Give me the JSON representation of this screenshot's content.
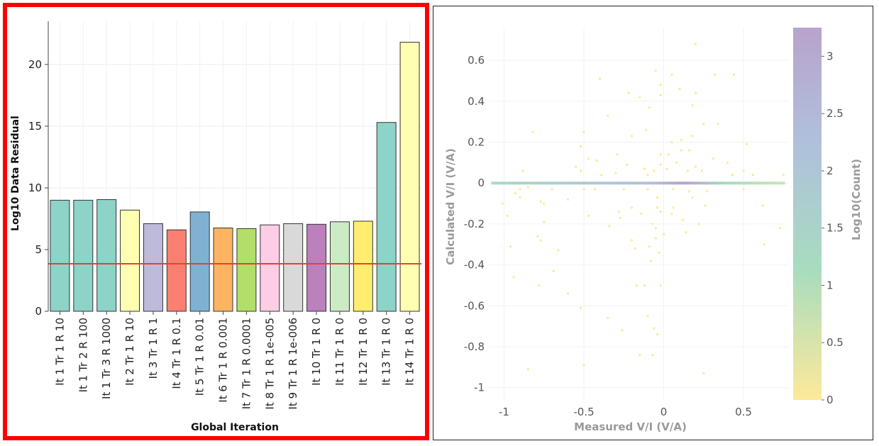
{
  "bar_chart": {
    "chart_data": {
      "type": "bar",
      "categories": [
        "It 1 Tr 1 R 10",
        "It 1 Tr 2 R 100",
        "It 1 Tr 3 R 1000",
        "It 2 Tr 1 R 10",
        "It 3 Tr 1 R 1",
        "It 4 Tr 1 R 0.1",
        "It 5 Tr 1 R 0.01",
        "It 6 Tr 1 R 0.001",
        "It 7 Tr 1 R 0.0001",
        "It 8 Tr 1 R 1e-005",
        "It 9 Tr 1 R 1e-006",
        "It 10 Tr 1 R 0",
        "It 11 Tr 1 R 0",
        "It 12 Tr 1 R 0",
        "It 13 Tr 1 R 0",
        "It 14 Tr 1 R 0"
      ],
      "values": [
        9.0,
        9.0,
        9.05,
        8.2,
        7.1,
        6.6,
        8.05,
        6.75,
        6.7,
        7.0,
        7.1,
        7.05,
        7.25,
        7.3,
        15.3,
        21.8
      ],
      "bar_colors": [
        "#8dd3c7",
        "#8dd3c7",
        "#8dd3c7",
        "#ffffb3",
        "#bebada",
        "#fb8072",
        "#80b1d3",
        "#fdb462",
        "#b3de69",
        "#fccde5",
        "#d9d9d9",
        "#bc80bd",
        "#ccebc5",
        "#ffed6f",
        "#8dd3c7",
        "#ffffb3"
      ],
      "reference_line": {
        "value": 3.85,
        "color": "#e8402c"
      },
      "xlabel": "Global Iteration",
      "ylabel": "Log10 Data Residual",
      "ylim": [
        0,
        23.5
      ],
      "yticks": [
        0,
        5,
        10,
        15,
        20
      ],
      "grid": true
    }
  },
  "scatter_plot": {
    "chart_data": {
      "type": "heatmap",
      "xlabel": "Measured V/I (V/A)",
      "ylabel": "Calculated V/I (V/A)",
      "xlim": [
        -1.1,
        0.78
      ],
      "ylim": [
        -1.06,
        0.76
      ],
      "xticks": [
        -1,
        -0.5,
        0,
        0.5
      ],
      "yticks": [
        -1,
        -0.8,
        -0.6,
        -0.4,
        -0.2,
        0,
        0.2,
        0.4,
        0.6
      ],
      "colorbar": {
        "label": "Log10(Count)",
        "range": [
          0,
          3.25
        ],
        "ticks": [
          0,
          0.5,
          1,
          1.5,
          2,
          2.5,
          3
        ],
        "colors": [
          "#fde99a",
          "#a8dcbf",
          "#b0bfdc",
          "#b8a3cc"
        ]
      },
      "band": {
        "y": 0,
        "x_range": [
          -1.08,
          0.76
        ]
      },
      "points": [
        [
          0.2,
          0.68
        ],
        [
          -0.05,
          0.55
        ],
        [
          0.05,
          0.53
        ],
        [
          0.32,
          0.53
        ],
        [
          0.44,
          0.53
        ],
        [
          -0.4,
          0.51
        ],
        [
          -0.02,
          0.48
        ],
        [
          -0.22,
          0.44
        ],
        [
          0.1,
          0.46
        ],
        [
          0.2,
          0.44
        ],
        [
          -0.02,
          0.43
        ],
        [
          -0.15,
          0.42
        ],
        [
          -0.09,
          0.37
        ],
        [
          0.18,
          0.38
        ],
        [
          -0.35,
          0.33
        ],
        [
          0.25,
          0.29
        ],
        [
          0.34,
          0.29
        ],
        [
          -0.82,
          0.25
        ],
        [
          -0.5,
          0.25
        ],
        [
          -0.11,
          0.26
        ],
        [
          -0.2,
          0.23
        ],
        [
          0.05,
          0.2
        ],
        [
          0.11,
          0.21
        ],
        [
          0.18,
          0.23
        ],
        [
          0.52,
          0.19
        ],
        [
          -0.52,
          0.18
        ],
        [
          0.11,
          0.16
        ],
        [
          0.16,
          0.16
        ],
        [
          -0.02,
          0.14
        ],
        [
          0.03,
          0.14
        ],
        [
          -0.29,
          0.14
        ],
        [
          -0.47,
          0.12
        ],
        [
          -0.42,
          0.11
        ],
        [
          -0.02,
          0.09
        ],
        [
          0.08,
          0.1
        ],
        [
          0.2,
          0.08
        ],
        [
          0.31,
          0.12
        ],
        [
          0.4,
          0.1
        ],
        [
          -0.23,
          0.09
        ],
        [
          -0.12,
          0.07
        ],
        [
          0.15,
          0.06
        ],
        [
          0.24,
          0.06
        ],
        [
          -0.88,
          0.06
        ],
        [
          -0.52,
          0.06
        ],
        [
          -0.39,
          0.04
        ],
        [
          -0.3,
          0.05
        ],
        [
          -0.06,
          0.06
        ],
        [
          0.02,
          0.07
        ],
        [
          0.5,
          0.06
        ],
        [
          0.56,
          0.04
        ],
        [
          -0.55,
          0.08
        ],
        [
          -0.1,
          0.04
        ],
        [
          0.43,
          0.04
        ],
        [
          0.75,
          0.04
        ],
        [
          -0.9,
          -0.03
        ],
        [
          -0.93,
          -0.05
        ],
        [
          -0.85,
          -0.02
        ],
        [
          -0.7,
          -0.03
        ],
        [
          -0.5,
          -0.03
        ],
        [
          -0.43,
          -0.03
        ],
        [
          -0.25,
          -0.03
        ],
        [
          -0.1,
          -0.03
        ],
        [
          0.06,
          -0.03
        ],
        [
          0.16,
          -0.04
        ],
        [
          0.27,
          -0.04
        ],
        [
          0.5,
          -0.03
        ],
        [
          -0.9,
          -0.07
        ],
        [
          -0.77,
          -0.09
        ],
        [
          -0.6,
          -0.08
        ],
        [
          -0.04,
          -0.07
        ],
        [
          0.18,
          -0.07
        ],
        [
          -1.01,
          -0.1
        ],
        [
          -0.75,
          -0.1
        ],
        [
          -0.2,
          -0.12
        ],
        [
          -0.04,
          -0.12
        ],
        [
          0.06,
          -0.12
        ],
        [
          0.26,
          -0.11
        ],
        [
          0.62,
          -0.11
        ],
        [
          -0.98,
          -0.16
        ],
        [
          -0.47,
          -0.16
        ],
        [
          -0.28,
          -0.14
        ],
        [
          -0.14,
          -0.15
        ],
        [
          -0.02,
          -0.14
        ],
        [
          0.05,
          -0.15
        ],
        [
          -0.75,
          -0.19
        ],
        [
          -0.27,
          -0.17
        ],
        [
          -0.07,
          -0.2
        ],
        [
          0.12,
          -0.18
        ],
        [
          0.22,
          -0.2
        ],
        [
          -0.05,
          -0.22
        ],
        [
          0.73,
          -0.22
        ],
        [
          -0.34,
          -0.21
        ],
        [
          0.0,
          -0.25
        ],
        [
          0.14,
          -0.24
        ],
        [
          -0.79,
          -0.26
        ],
        [
          -0.77,
          -0.28
        ],
        [
          -0.2,
          -0.28
        ],
        [
          -0.05,
          -0.27
        ],
        [
          0.63,
          -0.3
        ],
        [
          -0.96,
          -0.31
        ],
        [
          -0.66,
          -0.33
        ],
        [
          -0.09,
          -0.31
        ],
        [
          -0.18,
          -0.32
        ],
        [
          -0.03,
          -0.34
        ],
        [
          -0.08,
          -0.38
        ],
        [
          -0.69,
          -0.43
        ],
        [
          -0.94,
          -0.46
        ],
        [
          -0.17,
          -0.5
        ],
        [
          -0.12,
          -0.5
        ],
        [
          -0.78,
          -0.5
        ],
        [
          -0.6,
          -0.54
        ],
        [
          -0.02,
          -0.5
        ],
        [
          -0.52,
          -0.61
        ],
        [
          -0.35,
          -0.66
        ],
        [
          -0.1,
          -0.65
        ],
        [
          -0.06,
          -0.71
        ],
        [
          -0.04,
          -0.74
        ],
        [
          -0.26,
          -0.72
        ],
        [
          -0.15,
          -0.84
        ],
        [
          -0.07,
          -0.84
        ],
        [
          -0.5,
          -0.89
        ],
        [
          -0.85,
          -0.91
        ],
        [
          0.25,
          -0.93
        ]
      ]
    }
  }
}
